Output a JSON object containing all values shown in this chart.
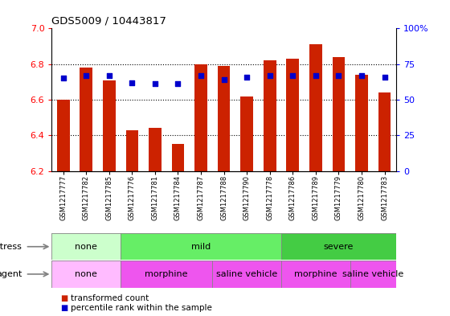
{
  "title": "GDS5009 / 10443817",
  "samples": [
    "GSM1217777",
    "GSM1217782",
    "GSM1217785",
    "GSM1217776",
    "GSM1217781",
    "GSM1217784",
    "GSM1217787",
    "GSM1217788",
    "GSM1217790",
    "GSM1217778",
    "GSM1217786",
    "GSM1217789",
    "GSM1217779",
    "GSM1217780",
    "GSM1217783"
  ],
  "transformed_count": [
    6.6,
    6.78,
    6.71,
    6.43,
    6.44,
    6.35,
    6.8,
    6.79,
    6.62,
    6.82,
    6.83,
    6.91,
    6.84,
    6.74,
    6.64
  ],
  "percentile_rank": [
    65,
    67,
    67,
    62,
    61,
    61,
    67,
    64,
    66,
    67,
    67,
    67,
    67,
    67,
    66
  ],
  "ylim_left": [
    6.2,
    7.0
  ],
  "ylim_right": [
    0,
    100
  ],
  "yticks_left": [
    6.2,
    6.4,
    6.6,
    6.8,
    7.0
  ],
  "yticks_right": [
    0,
    25,
    50,
    75,
    100
  ],
  "bar_color": "#cc2200",
  "dot_color": "#0000cc",
  "bar_bottom": 6.2,
  "stress_groups": [
    {
      "label": "none",
      "start": 0,
      "end": 3,
      "color_light": "#ccffcc",
      "color_dark": "#ccffcc"
    },
    {
      "label": "mild",
      "start": 3,
      "end": 10,
      "color_light": "#66ee66",
      "color_dark": "#66ee66"
    },
    {
      "label": "severe",
      "start": 10,
      "end": 15,
      "color_light": "#33cc55",
      "color_dark": "#33cc55"
    }
  ],
  "agent_groups": [
    {
      "label": "none",
      "start": 0,
      "end": 3,
      "color": "#ffbbff"
    },
    {
      "label": "morphine",
      "start": 3,
      "end": 7,
      "color": "#ee55ee"
    },
    {
      "label": "saline vehicle",
      "start": 7,
      "end": 10,
      "color": "#ee55ee"
    },
    {
      "label": "morphine",
      "start": 10,
      "end": 13,
      "color": "#ee55ee"
    },
    {
      "label": "saline vehicle",
      "start": 13,
      "end": 15,
      "color": "#ee55ee"
    }
  ],
  "stress_row_label": "stress",
  "agent_row_label": "agent",
  "legend_items": [
    {
      "color": "#cc2200",
      "label": "transformed count"
    },
    {
      "color": "#0000cc",
      "label": "percentile rank within the sample"
    }
  ],
  "grid_lines": [
    6.4,
    6.6,
    6.8
  ],
  "right_tick_labels": [
    "0",
    "25",
    "50",
    "75",
    "100%"
  ]
}
